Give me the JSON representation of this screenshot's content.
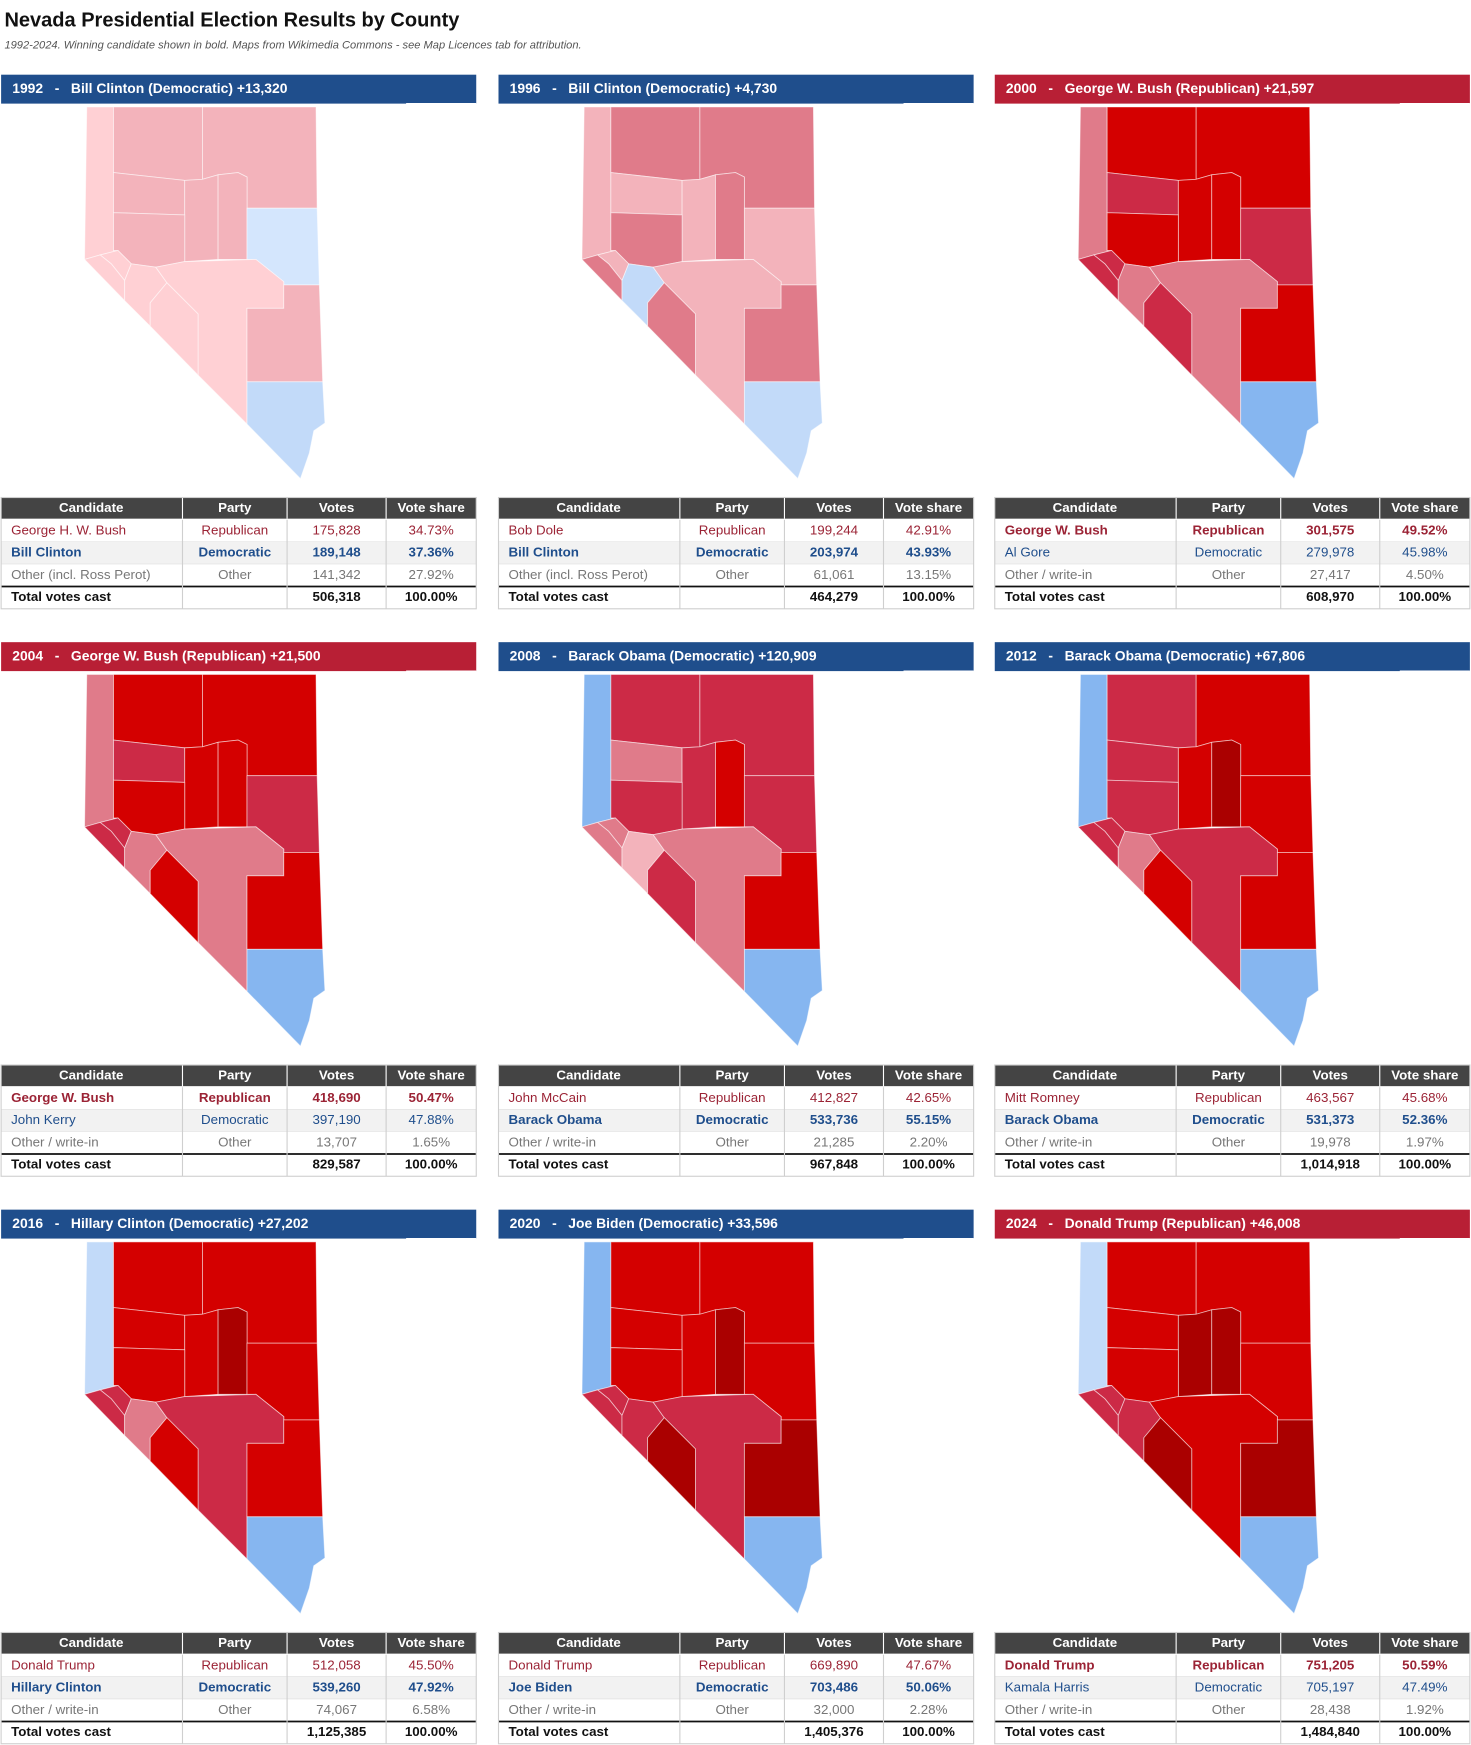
{
  "title": "Nevada Presidential Election Results by County",
  "subtitle": "1992-2024. Winning candidate shown in bold. Maps from Wikimedia Commons - see Map Licences tab for attribution.",
  "table_columns": [
    "Candidate",
    "Party",
    "Votes",
    "Vote share"
  ],
  "total_label": "Total votes cast",
  "panels": [
    {
      "heading": "1992   -   Bill Clinton (Democratic) +13,320",
      "header_color": "#1f4e8c",
      "map_colors": [
        "#ffd0d4",
        "#f3b3bb",
        "#f3b3bb",
        "#f3b3bb",
        "#f3b3bb",
        "#f3b3bb",
        "#d4e6fd",
        "#f3b3bb",
        "#ffd0d4",
        "#ffd0d4",
        "#ffd0d4",
        "#ffd0d4",
        "#ffd0d4",
        "#f3b3bb",
        "#c2daf9"
      ],
      "rows": [
        {
          "cells": [
            "George H. W. Bush",
            "Republican",
            "175,828",
            "34.73%"
          ],
          "color": "#9b2335"
        },
        {
          "cells": [
            "Bill Clinton",
            "Democratic",
            "189,148",
            "37.36%"
          ],
          "color": "#1f4e8c"
        },
        {
          "cells": [
            "Other (incl. Ross Perot)",
            "Other",
            "141,342",
            "27.92%"
          ],
          "color": "#777777"
        }
      ],
      "winner_row": 1,
      "total": [
        "506,318",
        "100.00%"
      ]
    },
    {
      "heading": "1996   -   Bill Clinton (Democratic) +4,730",
      "header_color": "#1f4e8c",
      "map_colors": [
        "#f3b3bb",
        "#e07b8a",
        "#e07b8a",
        "#f3b3bb",
        "#f3b3bb",
        "#e07b8a",
        "#f3b3bb",
        "#e07b8a",
        "#f3b3bb",
        "#e07b8a",
        "#c2daf9",
        "#f3b3bb",
        "#e07b8a",
        "#e07b8a",
        "#c2daf9"
      ],
      "rows": [
        {
          "cells": [
            "Bob Dole",
            "Republican",
            "199,244",
            "42.91%"
          ],
          "color": "#9b2335"
        },
        {
          "cells": [
            "Bill Clinton",
            "Democratic",
            "203,974",
            "43.93%"
          ],
          "color": "#1f4e8c"
        },
        {
          "cells": [
            "Other (incl. Ross Perot)",
            "Other",
            "61,061",
            "13.15%"
          ],
          "color": "#777777"
        }
      ],
      "winner_row": 1,
      "total": [
        "464,279",
        "100.00%"
      ]
    },
    {
      "heading": "2000   -   George W. Bush (Republican) +21,597",
      "header_color": "#b81f35",
      "map_colors": [
        "#e07b8a",
        "#d40000",
        "#d40000",
        "#cc2a46",
        "#d40000",
        "#d40000",
        "#cc2a46",
        "#d40000",
        "#cc2a46",
        "#cc2a46",
        "#e07b8a",
        "#e07b8a",
        "#cc2a46",
        "#d40000",
        "#86b6f0"
      ],
      "rows": [
        {
          "cells": [
            "George W. Bush",
            "Republican",
            "301,575",
            "49.52%"
          ],
          "color": "#9b2335"
        },
        {
          "cells": [
            "Al Gore",
            "Democratic",
            "279,978",
            "45.98%"
          ],
          "color": "#1f4e8c"
        },
        {
          "cells": [
            "Other / write-in",
            "Other",
            "27,417",
            "4.50%"
          ],
          "color": "#777777"
        }
      ],
      "winner_row": 0,
      "total": [
        "608,970",
        "100.00%"
      ]
    },
    {
      "heading": "2004   -   George W. Bush (Republican) +21,500",
      "header_color": "#b81f35",
      "map_colors": [
        "#e07b8a",
        "#d40000",
        "#d40000",
        "#cc2a46",
        "#d40000",
        "#d40000",
        "#cc2a46",
        "#d40000",
        "#cc2a46",
        "#cc2a46",
        "#e07b8a",
        "#e07b8a",
        "#d40000",
        "#d40000",
        "#86b6f0"
      ],
      "rows": [
        {
          "cells": [
            "George W. Bush",
            "Republican",
            "418,690",
            "50.47%"
          ],
          "color": "#9b2335"
        },
        {
          "cells": [
            "John Kerry",
            "Democratic",
            "397,190",
            "47.88%"
          ],
          "color": "#1f4e8c"
        },
        {
          "cells": [
            "Other / write-in",
            "Other",
            "13,707",
            "1.65%"
          ],
          "color": "#777777"
        }
      ],
      "winner_row": 0,
      "total": [
        "829,587",
        "100.00%"
      ]
    },
    {
      "heading": "2008   -   Barack Obama (Democratic) +120,909",
      "header_color": "#1f4e8c",
      "map_colors": [
        "#86b6f0",
        "#cc2a46",
        "#cc2a46",
        "#e07b8a",
        "#cc2a46",
        "#d40000",
        "#cc2a46",
        "#cc2a46",
        "#e07b8a",
        "#e07b8a",
        "#f3b3bb",
        "#e07b8a",
        "#cc2a46",
        "#d40000",
        "#86b6f0"
      ],
      "rows": [
        {
          "cells": [
            "John McCain",
            "Republican",
            "412,827",
            "42.65%"
          ],
          "color": "#9b2335"
        },
        {
          "cells": [
            "Barack Obama",
            "Democratic",
            "533,736",
            "55.15%"
          ],
          "color": "#1f4e8c"
        },
        {
          "cells": [
            "Other / write-in",
            "Other",
            "21,285",
            "2.20%"
          ],
          "color": "#777777"
        }
      ],
      "winner_row": 1,
      "total": [
        "967,848",
        "100.00%"
      ]
    },
    {
      "heading": "2012   -   Barack Obama (Democratic) +67,806",
      "header_color": "#1f4e8c",
      "map_colors": [
        "#86b6f0",
        "#cc2a46",
        "#d40000",
        "#cc2a46",
        "#d40000",
        "#aa0000",
        "#d40000",
        "#cc2a46",
        "#cc2a46",
        "#cc2a46",
        "#e07b8a",
        "#cc2a46",
        "#d40000",
        "#d40000",
        "#86b6f0"
      ],
      "rows": [
        {
          "cells": [
            "Mitt Romney",
            "Republican",
            "463,567",
            "45.68%"
          ],
          "color": "#9b2335"
        },
        {
          "cells": [
            "Barack Obama",
            "Democratic",
            "531,373",
            "52.36%"
          ],
          "color": "#1f4e8c"
        },
        {
          "cells": [
            "Other / write-in",
            "Other",
            "19,978",
            "1.97%"
          ],
          "color": "#777777"
        }
      ],
      "winner_row": 1,
      "total": [
        "1,014,918",
        "100.00%"
      ]
    },
    {
      "heading": "2016   -   Hillary Clinton (Democratic) +27,202",
      "header_color": "#1f4e8c",
      "map_colors": [
        "#c2daf9",
        "#d40000",
        "#d40000",
        "#d40000",
        "#d40000",
        "#aa0000",
        "#d40000",
        "#d40000",
        "#cc2a46",
        "#cc2a46",
        "#e07b8a",
        "#cc2a46",
        "#d40000",
        "#d40000",
        "#86b6f0"
      ],
      "rows": [
        {
          "cells": [
            "Donald Trump",
            "Republican",
            "512,058",
            "45.50%"
          ],
          "color": "#9b2335"
        },
        {
          "cells": [
            "Hillary Clinton",
            "Democratic",
            "539,260",
            "47.92%"
          ],
          "color": "#1f4e8c"
        },
        {
          "cells": [
            "Other / write-in",
            "Other",
            "74,067",
            "6.58%"
          ],
          "color": "#777777"
        }
      ],
      "winner_row": 1,
      "total": [
        "1,125,385",
        "100.00%"
      ]
    },
    {
      "heading": "2020   -   Joe Biden (Democratic) +33,596",
      "header_color": "#1f4e8c",
      "map_colors": [
        "#86b6f0",
        "#d40000",
        "#d40000",
        "#d40000",
        "#d40000",
        "#aa0000",
        "#d40000",
        "#d40000",
        "#cc2a46",
        "#cc2a46",
        "#cc2a46",
        "#cc2a46",
        "#aa0000",
        "#aa0000",
        "#86b6f0"
      ],
      "rows": [
        {
          "cells": [
            "Donald Trump",
            "Republican",
            "669,890",
            "47.67%"
          ],
          "color": "#9b2335"
        },
        {
          "cells": [
            "Joe Biden",
            "Democratic",
            "703,486",
            "50.06%"
          ],
          "color": "#1f4e8c"
        },
        {
          "cells": [
            "Other / write-in",
            "Other",
            "32,000",
            "2.28%"
          ],
          "color": "#777777"
        }
      ],
      "winner_row": 1,
      "total": [
        "1,405,376",
        "100.00%"
      ]
    },
    {
      "heading": "2024   -   Donald Trump (Republican) +46,008",
      "header_color": "#b81f35",
      "map_colors": [
        "#c2daf9",
        "#d40000",
        "#d40000",
        "#d40000",
        "#aa0000",
        "#aa0000",
        "#d40000",
        "#d40000",
        "#cc2a46",
        "#cc2a46",
        "#cc2a46",
        "#d40000",
        "#aa0000",
        "#aa0000",
        "#86b6f0"
      ],
      "rows": [
        {
          "cells": [
            "Donald Trump",
            "Republican",
            "751,205",
            "50.59%"
          ],
          "color": "#9b2335"
        },
        {
          "cells": [
            "Kamala Harris",
            "Democratic",
            "705,197",
            "47.49%"
          ],
          "color": "#1f4e8c"
        },
        {
          "cells": [
            "Other / write-in",
            "Other",
            "28,438",
            "1.92%"
          ],
          "color": "#777777"
        }
      ],
      "winner_row": 0,
      "total": [
        "1,484,840",
        "100.00%"
      ]
    }
  ]
}
